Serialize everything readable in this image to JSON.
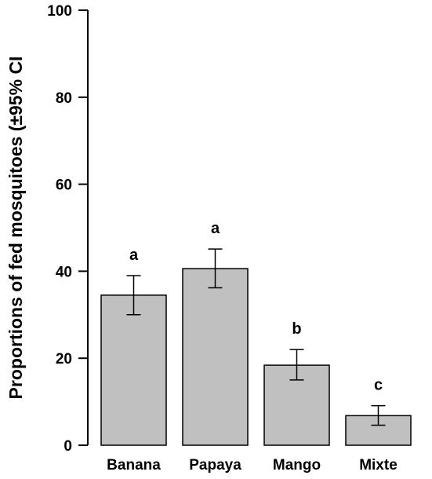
{
  "chart_data": {
    "type": "bar",
    "categories": [
      "Banana",
      "Papaya",
      "Mango",
      "Mixte"
    ],
    "values": [
      34.5,
      40.6,
      18.4,
      6.8
    ],
    "ci_lower": [
      30.0,
      36.2,
      15.0,
      4.6
    ],
    "ci_upper": [
      39.0,
      45.1,
      22.0,
      9.1
    ],
    "significance_letters": [
      "a",
      "a",
      "b",
      "c"
    ],
    "ylabel": "Proportions of fed mosquitoes (±95% CI",
    "xlabel": "",
    "ylim": [
      0,
      100
    ],
    "yticks": [
      0,
      20,
      40,
      60,
      80,
      100
    ],
    "grid": false,
    "bar_color": "#c0c0c0",
    "edge_color": "#000000"
  }
}
